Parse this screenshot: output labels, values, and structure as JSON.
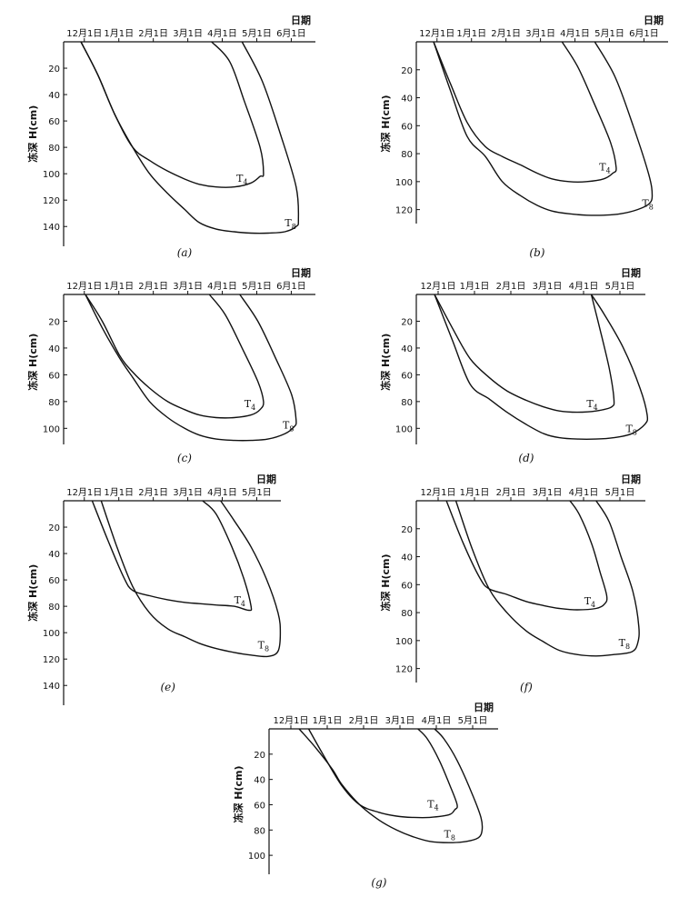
{
  "chart_data": [
    {
      "panel": "(a)",
      "type": "line",
      "xlabel": "日期",
      "ylabel": "冻深 H(cm)",
      "x_ticks": [
        "12月1日",
        "1月1日",
        "2月1日",
        "3月1日",
        "4月1日",
        "5月1日",
        "6月1日"
      ],
      "y_ticks": [
        20,
        40,
        60,
        80,
        100,
        120,
        140
      ],
      "ylim": [
        0,
        155
      ],
      "y_inverted": true,
      "series": [
        {
          "name": "T4",
          "x": [
            "11-16",
            "12-01",
            "12-16",
            "01-01",
            "01-16",
            "02-01",
            "02-16",
            "03-01",
            "03-16",
            "04-01",
            "04-16",
            "04-24",
            "04-27",
            "04-24",
            "04-10",
            "03-28",
            "03-12"
          ],
          "y": [
            0,
            25,
            55,
            80,
            90,
            98,
            104,
            108,
            110,
            110,
            107,
            102,
            100,
            80,
            45,
            15,
            0
          ]
        },
        {
          "name": "T8",
          "x": [
            "11-16",
            "12-01",
            "12-16",
            "01-01",
            "01-16",
            "02-01",
            "02-16",
            "03-01",
            "03-16",
            "04-01",
            "04-16",
            "05-01",
            "05-16",
            "05-26",
            "05-28",
            "05-26",
            "05-12",
            "04-26",
            "04-08"
          ],
          "y": [
            0,
            25,
            55,
            80,
            100,
            115,
            127,
            137,
            142,
            144,
            145,
            145,
            144,
            140,
            135,
            110,
            70,
            30,
            0
          ]
        }
      ],
      "series_labels": [
        {
          "text": "T",
          "sub": "4",
          "at_x": "04-03",
          "at_y": 106
        },
        {
          "text": "T",
          "sub": "8",
          "at_x": "05-16",
          "at_y": 140
        }
      ]
    },
    {
      "panel": "(b)",
      "type": "line",
      "xlabel": "日期",
      "ylabel": "冻深 H(cm)",
      "x_ticks": [
        "12月1日",
        "1月1日",
        "2月1日",
        "3月1日",
        "4月1日",
        "5月1日",
        "6月1日"
      ],
      "y_ticks": [
        20,
        40,
        60,
        80,
        100,
        120
      ],
      "ylim": [
        0,
        130
      ],
      "y_inverted": true,
      "series": [
        {
          "name": "T4",
          "x": [
            "11-16",
            "12-01",
            "12-16",
            "01-01",
            "01-16",
            "02-01",
            "02-16",
            "03-01",
            "03-16",
            "04-01",
            "04-16",
            "04-24",
            "04-27",
            "04-22",
            "04-08",
            "03-24",
            "03-10"
          ],
          "y": [
            0,
            30,
            58,
            75,
            82,
            88,
            94,
            98,
            100,
            100,
            98,
            94,
            90,
            72,
            45,
            18,
            0
          ]
        },
        {
          "name": "T8",
          "x": [
            "11-16",
            "12-01",
            "12-16",
            "01-01",
            "01-16",
            "02-01",
            "02-16",
            "03-01",
            "03-16",
            "04-01",
            "04-16",
            "05-01",
            "05-16",
            "05-26",
            "05-29",
            "05-26",
            "05-12",
            "04-26",
            "04-08"
          ],
          "y": [
            0,
            35,
            68,
            82,
            100,
            110,
            117,
            121,
            123,
            124,
            124,
            123,
            120,
            116,
            110,
            95,
            60,
            25,
            0
          ]
        }
      ],
      "series_labels": [
        {
          "text": "T",
          "sub": "4",
          "at_x": "04-12",
          "at_y": 92
        },
        {
          "text": "T",
          "sub": "8",
          "at_x": "05-20",
          "at_y": 118
        }
      ]
    },
    {
      "panel": "(c)",
      "type": "line",
      "xlabel": "日期",
      "ylabel": "冻深 H(cm)",
      "x_ticks": [
        "12月1日",
        "1月1日",
        "2月1日",
        "3月1日",
        "4月1日",
        "5月1日",
        "6月1日"
      ],
      "y_ticks": [
        20,
        40,
        60,
        80,
        100
      ],
      "ylim": [
        0,
        112
      ],
      "y_inverted": true,
      "series": [
        {
          "name": "T4",
          "x": [
            "11-20",
            "12-05",
            "12-20",
            "01-01",
            "01-16",
            "02-01",
            "02-16",
            "03-01",
            "03-16",
            "04-01",
            "04-16",
            "04-24",
            "04-27",
            "04-22",
            "04-08",
            "03-24",
            "03-10"
          ],
          "y": [
            0,
            20,
            45,
            58,
            70,
            80,
            86,
            90,
            92,
            92,
            90,
            86,
            80,
            65,
            40,
            15,
            0
          ]
        },
        {
          "name": "T8",
          "x": [
            "11-20",
            "12-05",
            "12-20",
            "01-01",
            "01-16",
            "02-01",
            "02-16",
            "03-01",
            "03-16",
            "04-01",
            "04-16",
            "05-01",
            "05-16",
            "05-24",
            "05-26",
            "05-22",
            "05-08",
            "04-22",
            "04-06"
          ],
          "y": [
            0,
            25,
            47,
            62,
            80,
            92,
            100,
            105,
            108,
            109,
            109,
            108,
            104,
            99,
            94,
            75,
            48,
            20,
            0
          ]
        }
      ],
      "series_labels": [
        {
          "text": "T",
          "sub": "4",
          "at_x": "04-10",
          "at_y": 84
        },
        {
          "text": "T",
          "sub": "8",
          "at_x": "05-14",
          "at_y": 100
        }
      ]
    },
    {
      "panel": "(d)",
      "type": "line",
      "xlabel": "日期",
      "ylabel": "冻深 H(cm)",
      "x_ticks": [
        "12月1日",
        "1月1日",
        "2月1日",
        "3月1日",
        "4月1日",
        "5月1日"
      ],
      "y_ticks": [
        20,
        40,
        60,
        80,
        100
      ],
      "ylim": [
        0,
        112
      ],
      "y_inverted": true,
      "series": [
        {
          "name": "T4",
          "x": [
            "11-16",
            "12-01",
            "12-16",
            "01-01",
            "01-16",
            "02-01",
            "02-16",
            "03-01",
            "03-16",
            "04-01",
            "04-14",
            "04-16",
            "04-12",
            "04-04",
            "03-28"
          ],
          "y": [
            0,
            25,
            48,
            62,
            72,
            79,
            84,
            87,
            88,
            87,
            84,
            78,
            55,
            25,
            0
          ]
        },
        {
          "name": "T8",
          "x": [
            "11-16",
            "12-01",
            "12-16",
            "01-01",
            "01-16",
            "02-01",
            "02-16",
            "03-01",
            "03-16",
            "04-01",
            "04-16",
            "05-01",
            "05-12",
            "05-14",
            "05-08",
            "04-24",
            "04-08",
            "03-28"
          ],
          "y": [
            0,
            34,
            67,
            78,
            88,
            97,
            104,
            107,
            108,
            108,
            107,
            104,
            97,
            90,
            70,
            40,
            15,
            0
          ]
        }
      ],
      "series_labels": [
        {
          "text": "T",
          "sub": "4",
          "at_x": "03-24",
          "at_y": 84
        },
        {
          "text": "T",
          "sub": "8",
          "at_x": "04-26",
          "at_y": 103
        }
      ]
    },
    {
      "panel": "(e)",
      "type": "line",
      "xlabel": "日期",
      "ylabel": "冻深 H(cm)",
      "x_ticks": [
        "12月1日",
        "1月1日",
        "2月1日",
        "3月1日",
        "4月1日",
        "5月1日"
      ],
      "y_ticks": [
        20,
        40,
        60,
        80,
        100,
        120,
        140
      ],
      "ylim": [
        0,
        155
      ],
      "y_inverted": true,
      "series": [
        {
          "name": "T4",
          "x": [
            "11-26",
            "12-10",
            "12-24",
            "01-01",
            "01-16",
            "02-01",
            "02-16",
            "03-01",
            "03-16",
            "04-01",
            "04-14",
            "04-16",
            "04-10",
            "03-30",
            "03-16",
            "03-04"
          ],
          "y": [
            0,
            30,
            58,
            68,
            72,
            75,
            77,
            78,
            79,
            80,
            83,
            80,
            60,
            35,
            10,
            0
          ]
        },
        {
          "name": "T8",
          "x": [
            "12-04",
            "12-18",
            "01-01",
            "01-16",
            "02-01",
            "02-16",
            "03-01",
            "03-16",
            "04-01",
            "04-16",
            "05-01",
            "05-10",
            "05-12",
            "05-10",
            "04-30",
            "04-16",
            "04-01",
            "03-20"
          ],
          "y": [
            0,
            35,
            65,
            85,
            97,
            103,
            108,
            112,
            115,
            117,
            118,
            114,
            100,
            85,
            60,
            35,
            15,
            0
          ]
        }
      ],
      "series_labels": [
        {
          "text": "T",
          "sub": "4",
          "at_x": "04-01",
          "at_y": 78
        },
        {
          "text": "T",
          "sub": "8",
          "at_x": "04-22",
          "at_y": 112
        }
      ]
    },
    {
      "panel": "(f)",
      "type": "line",
      "xlabel": "日期",
      "ylabel": "冻深 H(cm)",
      "x_ticks": [
        "12月1日",
        "1月1日",
        "2月1日",
        "3月1日",
        "4月1日",
        "5月1日"
      ],
      "y_ticks": [
        20,
        40,
        60,
        80,
        100,
        120
      ],
      "ylim": [
        0,
        130
      ],
      "y_inverted": true,
      "series": [
        {
          "name": "T4",
          "x": [
            "11-26",
            "12-10",
            "12-24",
            "01-01",
            "01-16",
            "02-01",
            "02-16",
            "03-01",
            "03-16",
            "04-01",
            "04-08",
            "04-10",
            "04-04",
            "03-28",
            "03-18",
            "03-10"
          ],
          "y": [
            0,
            30,
            55,
            63,
            67,
            72,
            75,
            77,
            78,
            77,
            74,
            68,
            50,
            30,
            10,
            0
          ]
        },
        {
          "name": "T8",
          "x": [
            "12-04",
            "12-18",
            "01-01",
            "01-16",
            "02-01",
            "02-16",
            "03-01",
            "03-16",
            "04-01",
            "04-16",
            "05-01",
            "05-06",
            "05-07",
            "05-02",
            "04-22",
            "04-12",
            "04-01"
          ],
          "y": [
            0,
            35,
            63,
            80,
            93,
            101,
            107,
            110,
            111,
            110,
            108,
            102,
            90,
            65,
            40,
            15,
            0
          ]
        }
      ],
      "series_labels": [
        {
          "text": "T",
          "sub": "4",
          "at_x": "03-22",
          "at_y": 74
        },
        {
          "text": "T",
          "sub": "8",
          "at_x": "04-20",
          "at_y": 104
        }
      ]
    },
    {
      "panel": "(g)",
      "type": "line",
      "xlabel": "日期",
      "ylabel": "冻深 H(cm)",
      "x_ticks": [
        "12月1日",
        "1月1日",
        "2月1日",
        "3月1日",
        "4月1日",
        "5月1日"
      ],
      "y_ticks": [
        20,
        40,
        60,
        80,
        100
      ],
      "ylim": [
        0,
        115
      ],
      "y_inverted": true,
      "series": [
        {
          "name": "T4",
          "x": [
            "12-04",
            "12-16",
            "01-01",
            "01-16",
            "02-01",
            "02-16",
            "03-01",
            "03-16",
            "04-01",
            "04-06",
            "04-08",
            "04-02",
            "03-24",
            "03-14",
            "03-06"
          ],
          "y": [
            0,
            20,
            45,
            60,
            66,
            69,
            70,
            70,
            68,
            64,
            60,
            45,
            25,
            8,
            0
          ]
        },
        {
          "name": "T8",
          "x": [
            "11-26",
            "12-10",
            "12-24",
            "01-01",
            "01-16",
            "02-01",
            "02-16",
            "03-01",
            "03-16",
            "04-01",
            "04-16",
            "04-26",
            "04-29",
            "04-28",
            "04-20",
            "04-08",
            "03-28",
            "03-20"
          ],
          "y": [
            0,
            15,
            32,
            44,
            60,
            72,
            80,
            85,
            89,
            90,
            89,
            86,
            80,
            70,
            50,
            25,
            8,
            0
          ]
        }
      ],
      "series_labels": [
        {
          "text": "T",
          "sub": "4",
          "at_x": "03-14",
          "at_y": 62
        },
        {
          "text": "T",
          "sub": "8",
          "at_x": "03-28",
          "at_y": 86
        }
      ]
    }
  ]
}
